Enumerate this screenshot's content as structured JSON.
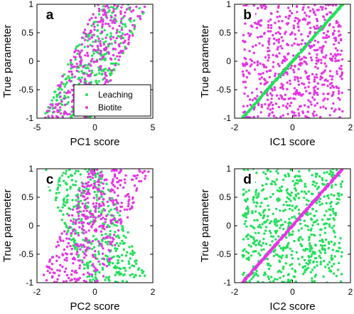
{
  "colors": {
    "leaching": "#22e05a",
    "biotite": "#e633e6",
    "axis": "#000000"
  },
  "chart_data": [
    {
      "type": "scatter",
      "panel_label": "a",
      "xlabel": "PC1 score",
      "ylabel": "True parameter",
      "xlim": [
        -5,
        5
      ],
      "ylim": [
        -1,
        1
      ],
      "xticks": [
        -5,
        0,
        5
      ],
      "xtick_labels": [
        "-5",
        "0",
        "5"
      ],
      "yticks": [
        -1,
        -0.5,
        0,
        0.5,
        1
      ],
      "ytick_labels": [
        "-1",
        "-0.5",
        "0",
        "0.5",
        "1"
      ],
      "legend": {
        "placement": "bottom-right",
        "entries": [
          "Leaching",
          "Biotite"
        ]
      },
      "series": [
        {
          "name": "Leaching",
          "color": "#22e05a",
          "pattern": "band",
          "x_per_y": 2.4,
          "x_offset": 0,
          "half_width": 2.2,
          "n": 330,
          "seed": 11
        },
        {
          "name": "Biotite",
          "color": "#e633e6",
          "pattern": "band",
          "x_per_y": 2.4,
          "x_offset": 0,
          "half_width": 2.2,
          "n": 330,
          "seed": 23
        }
      ]
    },
    {
      "type": "scatter",
      "panel_label": "b",
      "xlabel": "IC1 score",
      "ylabel": "True parameter",
      "xlim": [
        -2,
        2
      ],
      "ylim": [
        -1,
        1
      ],
      "xticks": [
        -2,
        0,
        2
      ],
      "xtick_labels": [
        "-2",
        "0",
        "2"
      ],
      "yticks": [
        -1,
        -0.5,
        0,
        0.5,
        1
      ],
      "ytick_labels": [
        "-1",
        "-0.5",
        "0",
        "0.5",
        "1"
      ],
      "series": [
        {
          "name": "Biotite",
          "color": "#e633e6",
          "pattern": "uniform",
          "x_range": [
            -1.73,
            1.73
          ],
          "n": 650,
          "seed": 37
        },
        {
          "name": "Leaching",
          "color": "#22e05a",
          "pattern": "line",
          "x_range": [
            -1.73,
            1.73
          ],
          "jitter": 0.03,
          "n": 450,
          "seed": 41
        }
      ]
    },
    {
      "type": "scatter",
      "panel_label": "c",
      "xlabel": "PC2 score",
      "ylabel": "True parameter",
      "xlim": [
        -2,
        2
      ],
      "ylim": [
        -1,
        1
      ],
      "xticks": [
        -2,
        0,
        2
      ],
      "xtick_labels": [
        "-2",
        "0",
        "2"
      ],
      "yticks": [
        -1,
        -0.5,
        0,
        0.5,
        1
      ],
      "ytick_labels": [
        "-1",
        "-0.5",
        "0",
        "0.5",
        "1"
      ],
      "series": [
        {
          "name": "Leaching",
          "color": "#22e05a",
          "pattern": "band",
          "x_per_y": -0.85,
          "x_offset": 0,
          "half_width": 1.05,
          "n": 420,
          "seed": 53
        },
        {
          "name": "Biotite",
          "color": "#e633e6",
          "pattern": "band",
          "x_per_y": 0.85,
          "x_offset": 0,
          "half_width": 1.05,
          "n": 420,
          "seed": 67
        }
      ]
    },
    {
      "type": "scatter",
      "panel_label": "d",
      "xlabel": "IC2 score",
      "ylabel": "True parameter",
      "xlim": [
        -2,
        2
      ],
      "ylim": [
        -1,
        1
      ],
      "xticks": [
        -2,
        0,
        2
      ],
      "xtick_labels": [
        "-2",
        "0",
        "2"
      ],
      "yticks": [
        -1,
        -0.5,
        0,
        0.5,
        1
      ],
      "ytick_labels": [
        "-1",
        "-0.5",
        "0",
        "0.5",
        "1"
      ],
      "series": [
        {
          "name": "Leaching",
          "color": "#22e05a",
          "pattern": "uniform",
          "x_range": [
            -1.73,
            1.73
          ],
          "n": 650,
          "seed": 71
        },
        {
          "name": "Biotite",
          "color": "#e633e6",
          "pattern": "line",
          "x_range": [
            -1.73,
            1.73
          ],
          "jitter": 0.03,
          "n": 450,
          "seed": 83
        }
      ]
    }
  ]
}
